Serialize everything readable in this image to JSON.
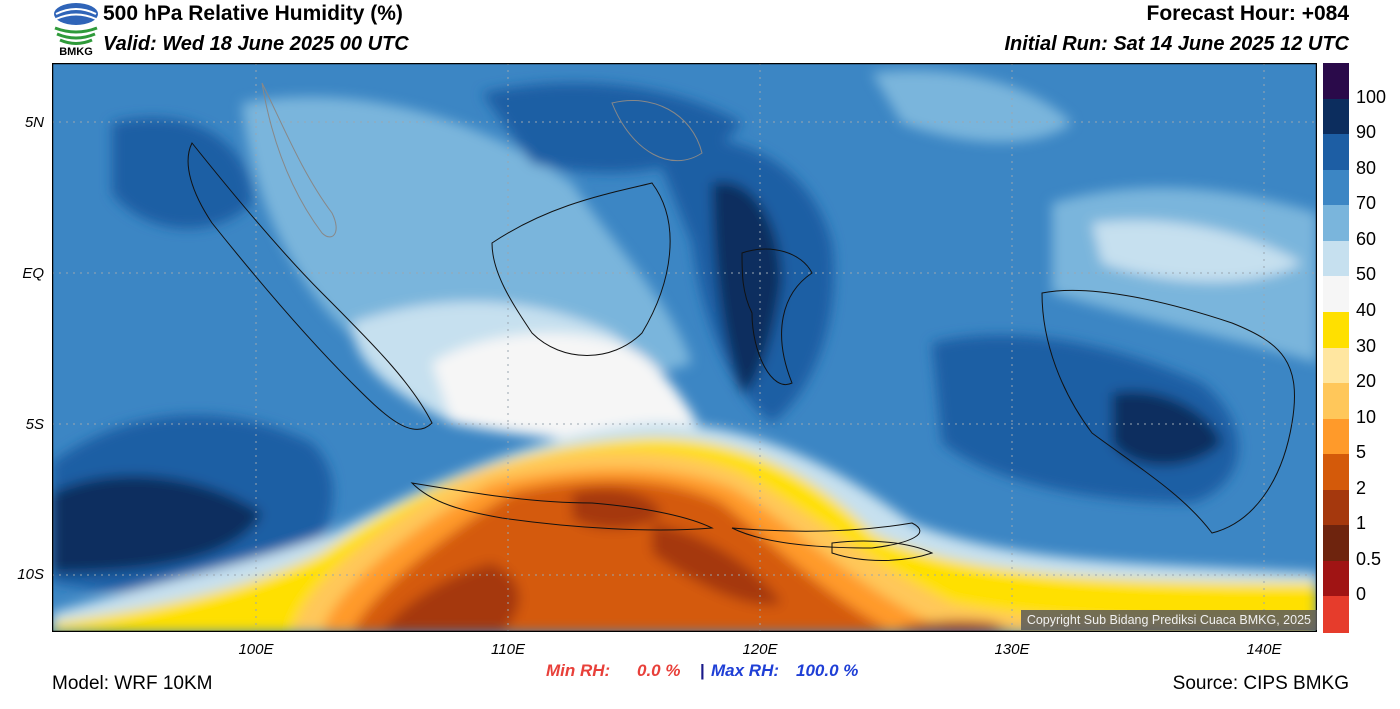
{
  "header": {
    "title": "500 hPa Relative Humidity (%)",
    "valid": "Valid: Wed 18 June 2025 00 UTC",
    "forecast_hour": "Forecast Hour: +084",
    "initial_run": "Initial Run: Sat 14 June 2025 12 UTC",
    "logo_text": "BMKG"
  },
  "map": {
    "lat_labels": [
      "5N",
      "EQ",
      "5S",
      "10S"
    ],
    "lon_labels": [
      "100E",
      "110E",
      "120E",
      "130E",
      "140E"
    ],
    "copyright": "Copyright Sub Bidang Prediksi Cuaca BMKG, 2025"
  },
  "colorbar": {
    "labels": [
      "100",
      "90",
      "80",
      "70",
      "60",
      "50",
      "40",
      "30",
      "20",
      "10",
      "5",
      "2",
      "1",
      "0.5",
      "0"
    ],
    "colors": [
      "#2a0a4a",
      "#0c2d5e",
      "#1d5ea4",
      "#3c86c4",
      "#7ab5dc",
      "#c6e0ef",
      "#f6f6f6",
      "#ffe000",
      "#ffe6a0",
      "#ffc75a",
      "#ff9a2a",
      "#d45a0a",
      "#a5380d",
      "#6e240e",
      "#a01414",
      "#e63c2c"
    ]
  },
  "footer": {
    "model": "Model: WRF 10KM",
    "source": "Source: CIPS BMKG",
    "min_rh_label": "Min RH:",
    "min_rh_value": "0.0 %",
    "separator": "|",
    "max_rh_label": "Max RH:",
    "max_rh_value": "100.0 %"
  }
}
